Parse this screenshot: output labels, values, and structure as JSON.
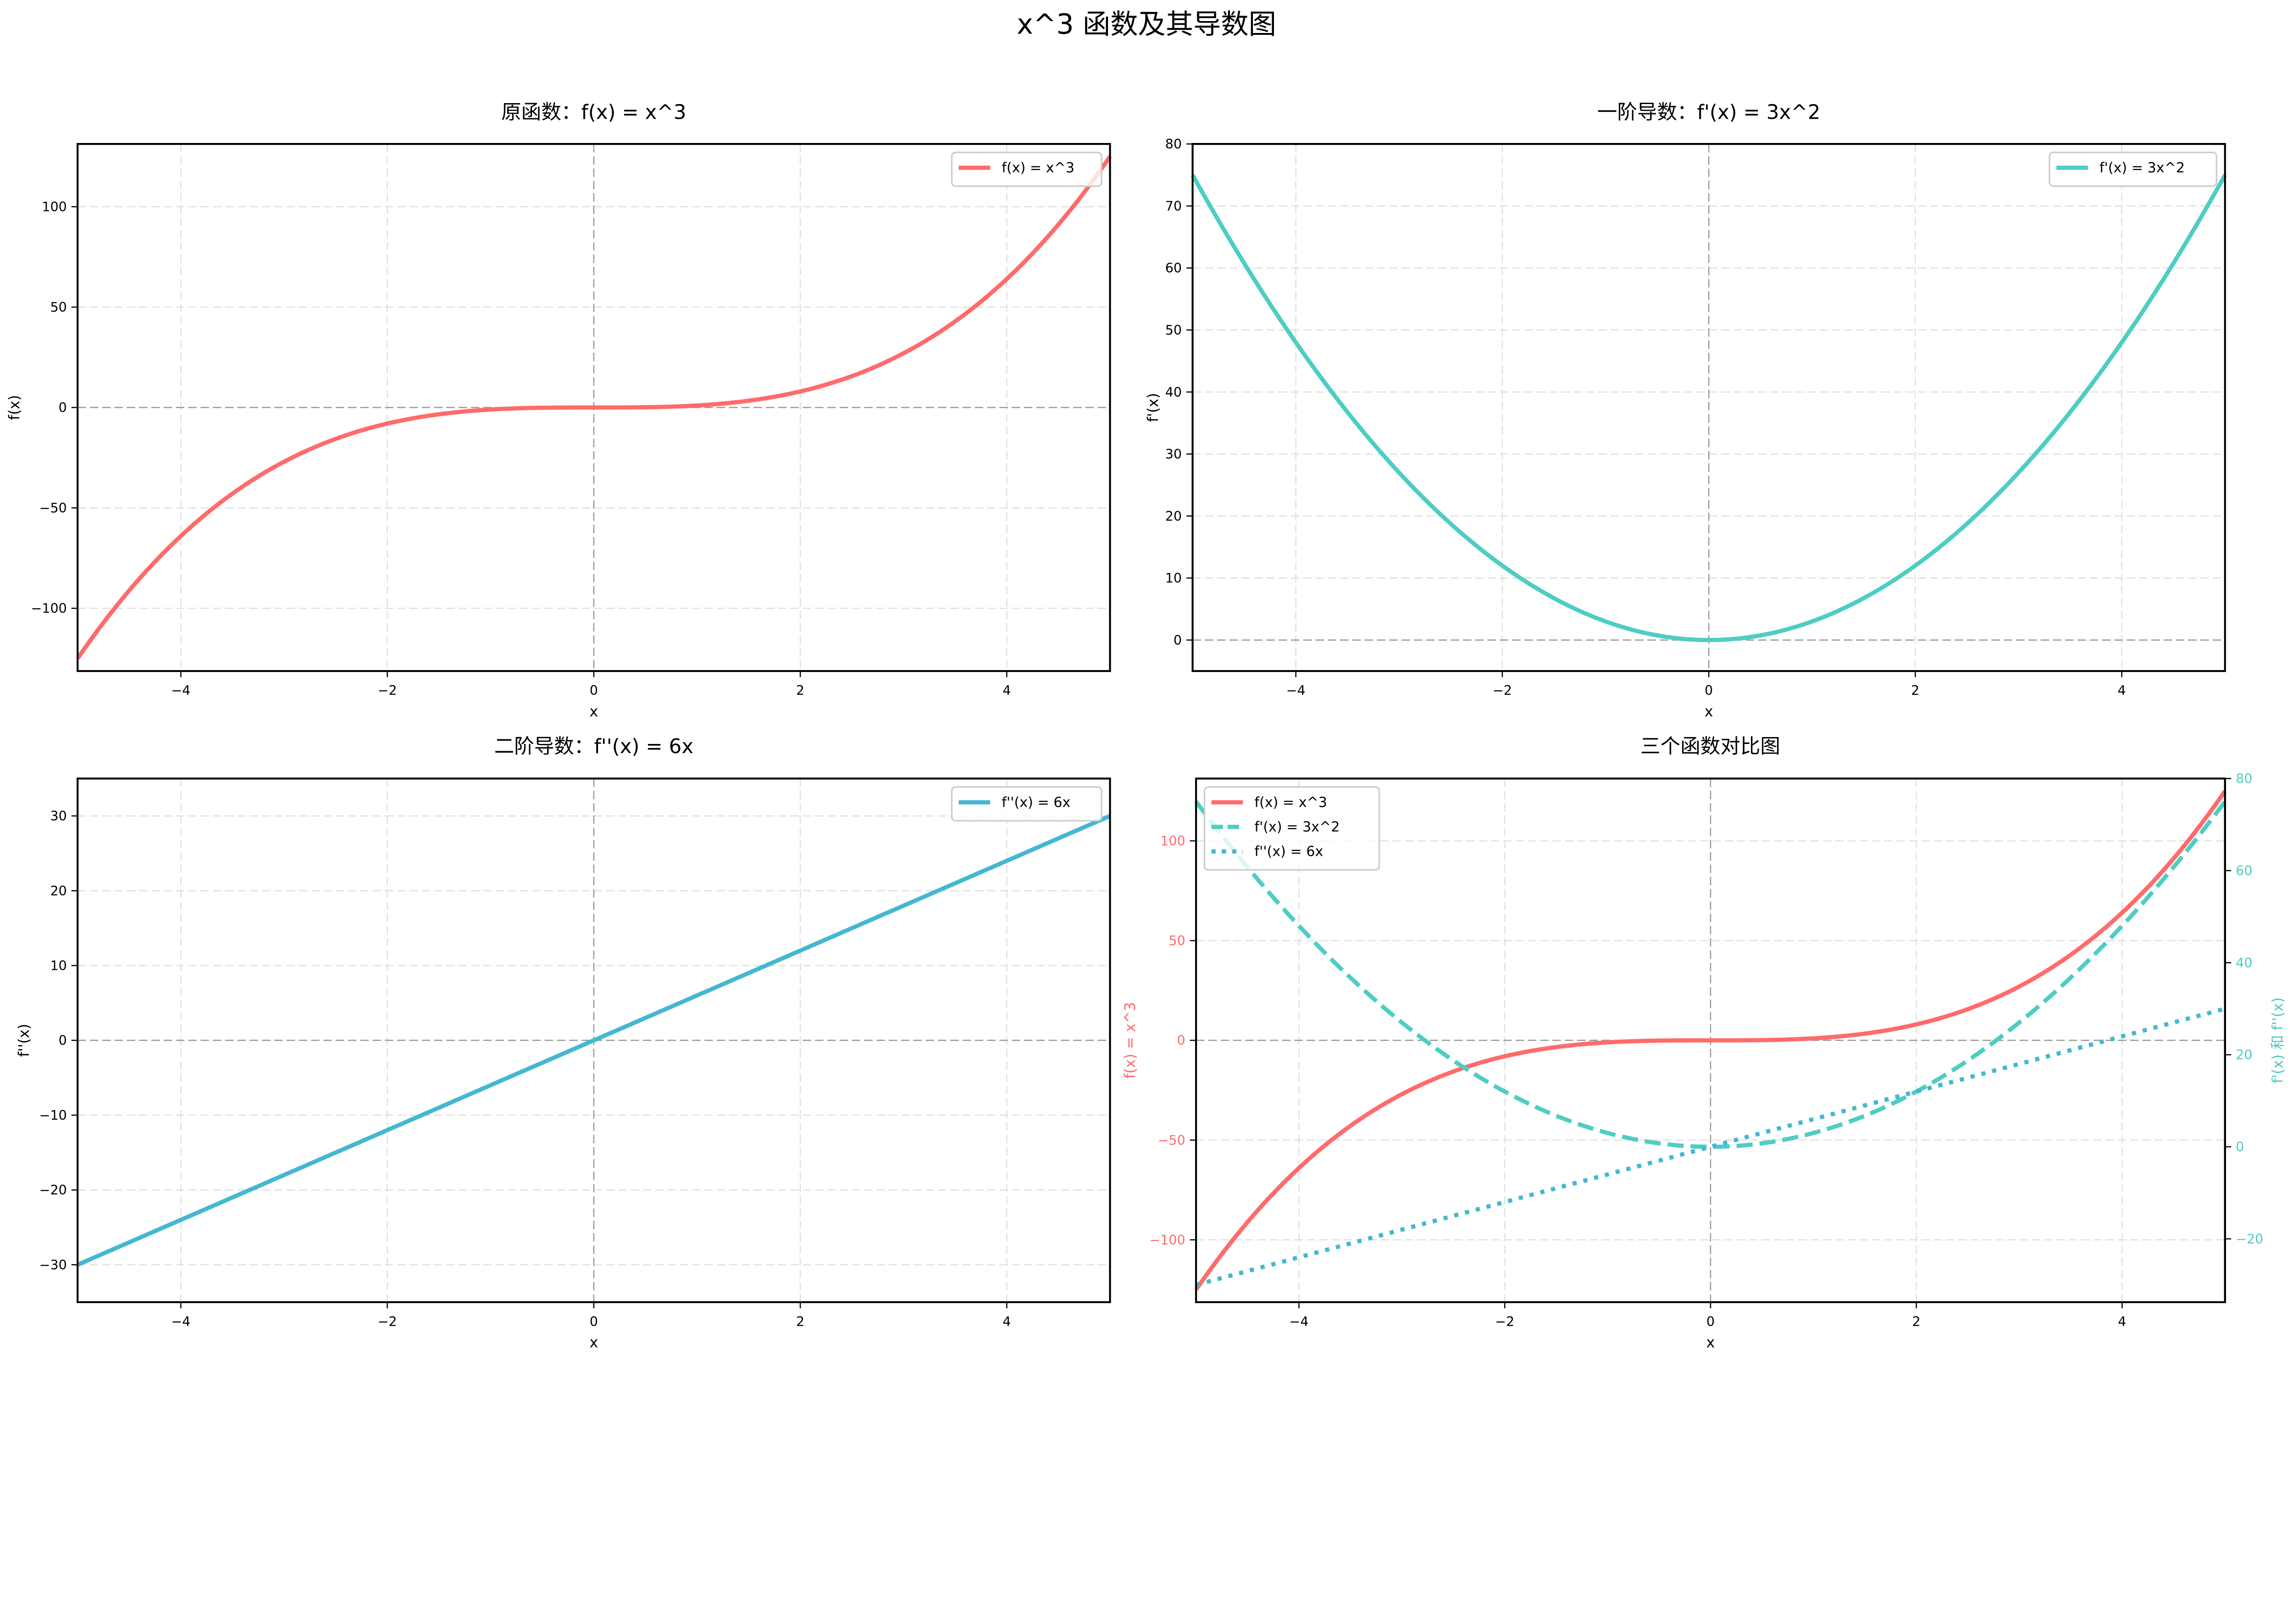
{
  "figure": {
    "title": "x^3 函数及其导数图"
  },
  "colors": {
    "f": "#FF6B6B",
    "f1": "#4ECDC4",
    "f2": "#45B7D1",
    "grid": "#e0e0e0",
    "zero_line": "#999999"
  },
  "panels": [
    {
      "id": "original",
      "title": "原函数：f(x) = x^3",
      "xlabel": "x",
      "ylabel": "f(x)",
      "legend": [
        "f(x) = x^3"
      ]
    },
    {
      "id": "first_derivative",
      "title": "一阶导数：f'(x) = 3x^2",
      "xlabel": "x",
      "ylabel": "f'(x)",
      "legend": [
        "f'(x) = 3x^2"
      ]
    },
    {
      "id": "second_derivative",
      "title": "二阶导数：f''(x) = 6x",
      "xlabel": "x",
      "ylabel": "f''(x)",
      "legend": [
        "f''(x) = 6x"
      ]
    },
    {
      "id": "comparison",
      "title": "三个函数对比图",
      "xlabel": "x",
      "ylabel_left": "f(x) = x^3",
      "ylabel_right": "f'(x) 和 f''(x)",
      "legend": [
        "f(x) = x^3",
        "f'(x) = 3x^2",
        "f''(x) = 6x"
      ]
    }
  ],
  "chart_data": [
    {
      "type": "line",
      "title": "原函数：f(x) = x^3",
      "xlabel": "x",
      "ylabel": "f(x)",
      "xlim": [
        -5,
        5
      ],
      "ylim": [
        -131.25,
        131.25
      ],
      "xticks": [
        -4,
        -2,
        0,
        2,
        4
      ],
      "yticks": [
        -100,
        -50,
        0,
        50,
        100
      ],
      "grid": true,
      "legend_position": "upper right",
      "series": [
        {
          "name": "f(x) = x^3",
          "color": "#FF6B6B",
          "style": "solid",
          "x": [
            -5,
            -4,
            -3,
            -2,
            -1,
            0,
            1,
            2,
            3,
            4,
            5
          ],
          "values": [
            -125,
            -64,
            -27,
            -8,
            -1,
            0,
            1,
            8,
            27,
            64,
            125
          ]
        }
      ]
    },
    {
      "type": "line",
      "title": "一阶导数：f'(x) = 3x^2",
      "xlabel": "x",
      "ylabel": "f'(x)",
      "xlim": [
        -5,
        5
      ],
      "ylim": [
        -5,
        80
      ],
      "xticks": [
        -4,
        -2,
        0,
        2,
        4
      ],
      "yticks": [
        0,
        10,
        20,
        30,
        40,
        50,
        60,
        70,
        80
      ],
      "grid": true,
      "legend_position": "upper right",
      "series": [
        {
          "name": "f'(x) = 3x^2",
          "color": "#4ECDC4",
          "style": "solid",
          "x": [
            -5,
            -4,
            -3,
            -2,
            -1,
            0,
            1,
            2,
            3,
            4,
            5
          ],
          "values": [
            75,
            48,
            27,
            12,
            3,
            0,
            3,
            12,
            27,
            48,
            75
          ]
        }
      ]
    },
    {
      "type": "line",
      "title": "二阶导数：f''(x) = 6x",
      "xlabel": "x",
      "ylabel": "f''(x)",
      "xlim": [
        -5,
        5
      ],
      "ylim": [
        -35,
        35
      ],
      "xticks": [
        -4,
        -2,
        0,
        2,
        4
      ],
      "yticks": [
        -30,
        -20,
        -10,
        0,
        10,
        20,
        30
      ],
      "grid": true,
      "legend_position": "upper right",
      "series": [
        {
          "name": "f''(x) = 6x",
          "color": "#45B7D1",
          "style": "solid",
          "x": [
            -5,
            -4,
            -3,
            -2,
            -1,
            0,
            1,
            2,
            3,
            4,
            5
          ],
          "values": [
            -30,
            -24,
            -18,
            -12,
            -6,
            0,
            6,
            12,
            18,
            24,
            30
          ]
        }
      ]
    },
    {
      "type": "line",
      "title": "三个函数对比图",
      "xlabel": "x",
      "ylabel": "f(x) = x^3",
      "ylabel_right": "f'(x) 和 f''(x)",
      "xlim": [
        -5,
        5
      ],
      "ylim": [
        -131.25,
        131.25
      ],
      "ylim_right": [
        -33.75,
        80
      ],
      "xticks": [
        -4,
        -2,
        0,
        2,
        4
      ],
      "yticks": [
        -100,
        -50,
        0,
        50,
        100
      ],
      "yticks_right": [
        -20,
        0,
        20,
        40,
        60,
        80
      ],
      "grid": true,
      "legend_position": "upper left",
      "series": [
        {
          "name": "f(x) = x^3",
          "color": "#FF6B6B",
          "style": "solid",
          "axis": "left",
          "x": [
            -5,
            -4,
            -3,
            -2,
            -1,
            0,
            1,
            2,
            3,
            4,
            5
          ],
          "values": [
            -125,
            -64,
            -27,
            -8,
            -1,
            0,
            1,
            8,
            27,
            64,
            125
          ]
        },
        {
          "name": "f'(x) = 3x^2",
          "color": "#4ECDC4",
          "style": "dashed",
          "axis": "right",
          "x": [
            -5,
            -4,
            -3,
            -2,
            -1,
            0,
            1,
            2,
            3,
            4,
            5
          ],
          "values": [
            75,
            48,
            27,
            12,
            3,
            0,
            3,
            12,
            27,
            48,
            75
          ]
        },
        {
          "name": "f''(x) = 6x",
          "color": "#45B7D1",
          "style": "dotted",
          "axis": "right",
          "x": [
            -5,
            -4,
            -3,
            -2,
            -1,
            0,
            1,
            2,
            3,
            4,
            5
          ],
          "values": [
            -30,
            -24,
            -18,
            -12,
            -6,
            0,
            6,
            12,
            18,
            24,
            30
          ]
        }
      ]
    }
  ]
}
